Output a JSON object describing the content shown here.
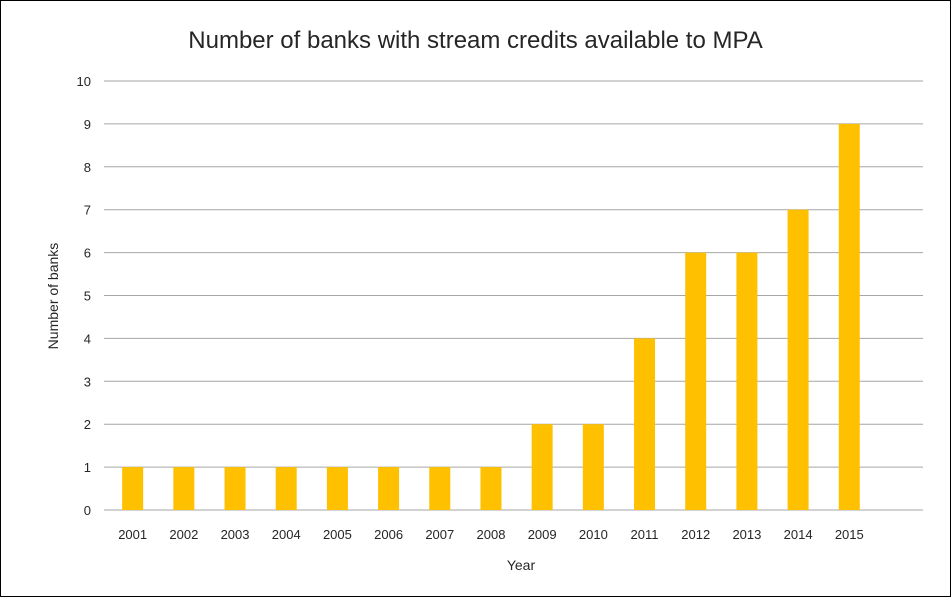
{
  "chart_data": {
    "type": "bar",
    "title": "Number of banks with stream credits available to MPA",
    "xlabel": "Year",
    "ylabel": "Number of banks",
    "categories": [
      "2001",
      "2002",
      "2003",
      "2004",
      "2005",
      "2006",
      "2007",
      "2008",
      "2009",
      "2010",
      "2011",
      "2012",
      "2013",
      "2014",
      "2015"
    ],
    "values": [
      1,
      1,
      1,
      1,
      1,
      1,
      1,
      1,
      2,
      2,
      4,
      6,
      6,
      7,
      9
    ],
    "ylim": [
      0,
      10
    ],
    "yticks": [
      "0",
      "1",
      "2",
      "3",
      "4",
      "5",
      "6",
      "7",
      "8",
      "9",
      "10"
    ],
    "grid": "horizontal",
    "legend": "none",
    "bar_color": "#FFC000",
    "gridline_color": "#A6A6A6"
  }
}
